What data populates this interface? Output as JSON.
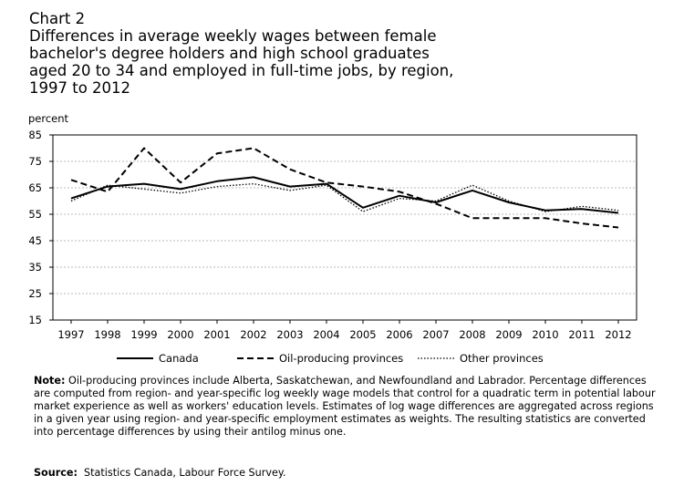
{
  "title": {
    "label": "Chart 2",
    "lines": [
      "Differences in average weekly wages between female",
      "bachelor's degree holders and high school graduates",
      "aged 20 to 34 and employed in full-time jobs, by region,",
      "1997 to 2012"
    ]
  },
  "chart_data": {
    "type": "line",
    "title": "Differences in average weekly wages between female bachelor's degree holders and high school graduates aged 20 to 34 and employed in full-time jobs, by region, 1997 to 2012",
    "ylabel": "percent",
    "xlabel": "",
    "ylim": [
      15,
      85
    ],
    "yticks": [
      15,
      25,
      35,
      45,
      55,
      65,
      75,
      85
    ],
    "grid": true,
    "legend_position": "bottom",
    "categories": [
      "1997",
      "1998",
      "1999",
      "2000",
      "2001",
      "2002",
      "2003",
      "2004",
      "2005",
      "2006",
      "2007",
      "2008",
      "2009",
      "2010",
      "2011",
      "2012"
    ],
    "series": [
      {
        "name": "Canada",
        "style": "solid",
        "values": [
          61,
          65.5,
          66.5,
          64.5,
          67.5,
          69,
          65.5,
          66.5,
          57.5,
          62,
          59.5,
          64,
          59.5,
          56.5,
          57,
          55.5
        ]
      },
      {
        "name": "Oil-producing provinces",
        "style": "dashed",
        "values": [
          68,
          63.5,
          80,
          67,
          78,
          80,
          72,
          67,
          65.5,
          63.5,
          59,
          53.5,
          53.5,
          53.5,
          51.5,
          50
        ]
      },
      {
        "name": "Other provinces",
        "style": "dotted",
        "values": [
          60,
          66,
          64.5,
          63,
          65.5,
          66.5,
          64,
          66,
          56,
          61,
          60,
          66,
          60,
          56,
          58,
          56.5
        ]
      }
    ]
  },
  "note": {
    "label": "Note:",
    "text": "Oil-producing provinces include Alberta, Saskatchewan, and Newfoundland and Labrador. Percentage differences are computed from region- and year-specific log weekly wage models that control for a quadratic term in potential labour market experience as well as workers' education levels. Estimates of log wage differences are aggregated across regions in a given year using region- and year-specific employment estimates as weights. The resulting statistics are converted into percentage differences by using their antilog minus one."
  },
  "source": {
    "label": "Source:",
    "text": "Statistics Canada, Labour Force Survey."
  }
}
